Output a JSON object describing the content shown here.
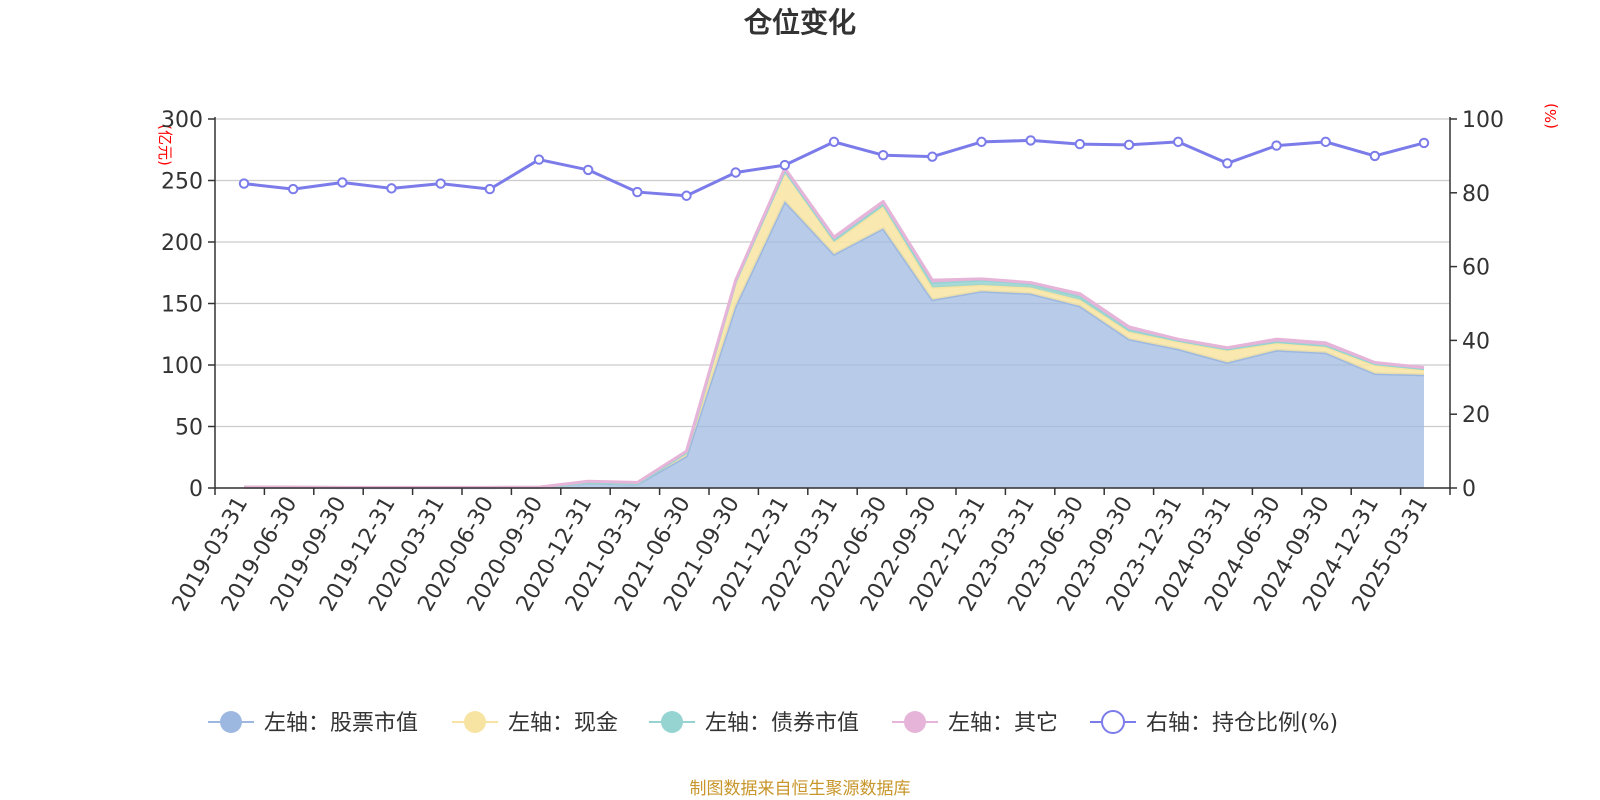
{
  "chart_data": {
    "type": "area",
    "title": "仓位变化",
    "left_axis_unit": "(亿元)",
    "right_axis_unit": "(%)",
    "ylim_left": [
      0,
      300
    ],
    "yticks_left": [
      0,
      50,
      100,
      150,
      200,
      250,
      300
    ],
    "ylim_right": [
      0,
      100
    ],
    "yticks_right": [
      0,
      20,
      40,
      60,
      80,
      100
    ],
    "grid": true,
    "legend_position": "bottom-center",
    "categories": [
      "2019-03-31",
      "2019-06-30",
      "2019-09-30",
      "2019-12-31",
      "2020-03-31",
      "2020-06-30",
      "2020-09-30",
      "2020-12-31",
      "2021-03-31",
      "2021-06-30",
      "2021-09-30",
      "2021-12-31",
      "2022-03-31",
      "2022-06-30",
      "2022-09-30",
      "2022-12-31",
      "2023-03-31",
      "2023-06-30",
      "2023-09-30",
      "2023-12-31",
      "2024-03-31",
      "2024-06-30",
      "2024-09-30",
      "2024-12-31",
      "2025-03-31"
    ],
    "series": [
      {
        "name": "左轴：股票市值",
        "axis": "left",
        "stacked": true,
        "color": "#9db8e0",
        "values": [
          0.5,
          0.5,
          0.3,
          0.3,
          0.3,
          0.3,
          0.5,
          4,
          3,
          26,
          148,
          233,
          190,
          211,
          153,
          160,
          158,
          148,
          121,
          113,
          102,
          112,
          110,
          93,
          92
        ]
      },
      {
        "name": "左轴：现金",
        "axis": "left",
        "stacked": true,
        "color": "#f8e4a2",
        "values": [
          0.1,
          0.1,
          0.1,
          0.1,
          0.1,
          0.1,
          0.1,
          0.5,
          0.5,
          3,
          20,
          25,
          10,
          18,
          10,
          5,
          5,
          5,
          6,
          6,
          10,
          6,
          5,
          7,
          4
        ]
      },
      {
        "name": "左轴：债券市值",
        "axis": "left",
        "stacked": true,
        "color": "#96d4d2",
        "values": [
          0,
          0,
          0,
          0,
          0,
          0,
          0,
          0,
          0,
          0,
          0,
          0,
          2,
          2,
          4,
          4,
          3,
          3,
          2,
          1,
          1,
          1,
          1,
          1,
          1
        ]
      },
      {
        "name": "左轴：其它",
        "axis": "left",
        "stacked": true,
        "color": "#e6b4d8",
        "values": [
          0.1,
          0.1,
          0.1,
          0.1,
          0.1,
          0.1,
          0.1,
          1,
          1,
          1,
          1,
          2,
          2,
          2,
          2,
          1,
          1,
          2,
          2,
          1,
          1,
          2,
          2,
          1,
          1
        ]
      },
      {
        "name": "右轴：持仓比例(%)",
        "axis": "right",
        "type": "line",
        "color": "#7b7bea",
        "values": [
          82.5,
          81,
          82.8,
          81.2,
          82.5,
          81,
          89,
          86.2,
          80.2,
          79.2,
          85.5,
          87.5,
          93.8,
          90.2,
          89.8,
          93.8,
          94.2,
          93.2,
          93,
          93.8,
          88,
          92.8,
          93.8,
          90,
          93.5
        ]
      }
    ]
  },
  "footer": {
    "source_text": "制图数据来自恒生聚源数据库"
  }
}
